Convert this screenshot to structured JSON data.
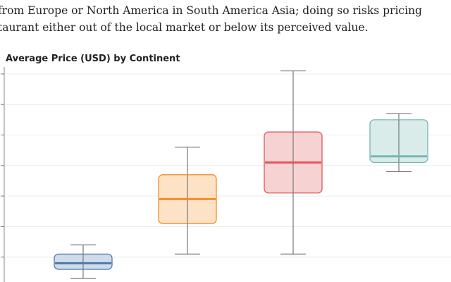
{
  "prose": {
    "line1": "from Europe or North America in South America Asia; doing so risks pricing",
    "line2": "taurant either out of the local market or below its perceived value."
  },
  "chart_data": {
    "type": "box",
    "title": "Average Price (USD) by Continent",
    "xlabel": "",
    "ylabel": "",
    "ylim": [
      0,
      70
    ],
    "grid": true,
    "series": [
      {
        "min": 3,
        "q1": 6,
        "median": 8,
        "q3": 11,
        "max": 14,
        "color": "#4e79a7",
        "fill": "#d0dcec"
      },
      {
        "min": 11,
        "q1": 21,
        "median": 29,
        "q3": 37,
        "max": 46,
        "color": "#f28e2b",
        "fill": "#fde2c6"
      },
      {
        "min": 11,
        "q1": 31,
        "median": 41,
        "q3": 51,
        "max": 71,
        "color": "#e15759",
        "fill": "#f7d2d3"
      },
      {
        "min": 38,
        "q1": 41,
        "median": 43,
        "q3": 55,
        "max": 57,
        "color": "#76b7b2",
        "fill": "#d9ecea"
      }
    ]
  }
}
